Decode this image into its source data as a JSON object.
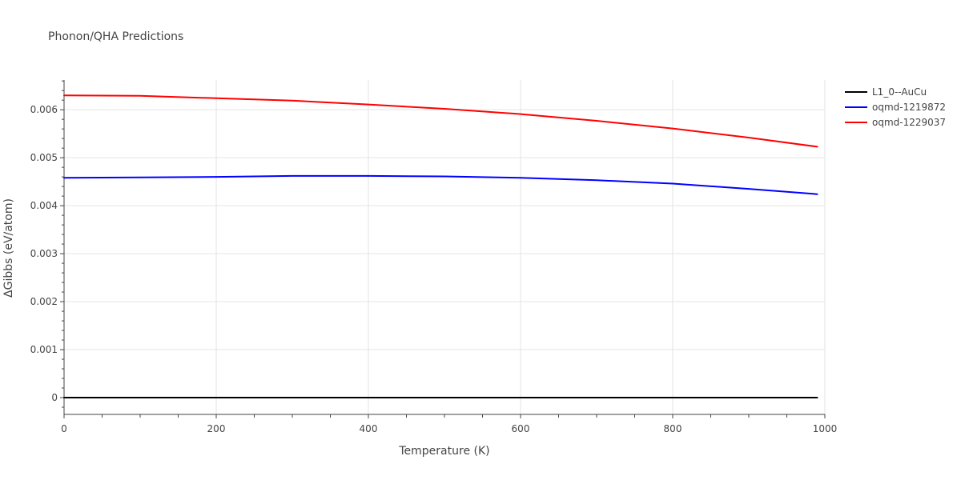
{
  "chart_data": {
    "type": "line",
    "title": "Phonon/QHA Predictions",
    "xlabel": "Temperature (K)",
    "ylabel": "ΔGibbs (eV/atom)",
    "xlim": [
      0,
      1000
    ],
    "ylim": [
      -0.00035,
      0.00662
    ],
    "x_ticks": [
      0,
      200,
      400,
      600,
      800,
      1000
    ],
    "x_tick_labels": [
      "0",
      "200",
      "400",
      "600",
      "800",
      "1000"
    ],
    "y_ticks": [
      0,
      0.001,
      0.002,
      0.003,
      0.004,
      0.005,
      0.006
    ],
    "y_tick_labels": [
      "0",
      "0.001",
      "0.002",
      "0.003",
      "0.004",
      "0.005",
      "0.006"
    ],
    "grid": true,
    "legend_position": "top-right",
    "series": [
      {
        "name": "L1_0--AuCu",
        "color": "#000000",
        "x": [
          0,
          100,
          200,
          300,
          400,
          500,
          600,
          700,
          800,
          900,
          990
        ],
        "y": [
          0,
          0,
          0,
          0,
          0,
          0,
          0,
          0,
          0,
          0,
          0
        ]
      },
      {
        "name": "oqmd-1219872",
        "color": "#0000ff",
        "x": [
          0,
          100,
          200,
          300,
          350,
          400,
          500,
          600,
          700,
          800,
          900,
          990
        ],
        "y": [
          0.00458,
          0.00459,
          0.0046,
          0.00462,
          0.00462,
          0.00462,
          0.00461,
          0.00458,
          0.00453,
          0.00446,
          0.00435,
          0.00424
        ]
      },
      {
        "name": "oqmd-1229037",
        "color": "#ff0000",
        "x": [
          0,
          100,
          200,
          300,
          400,
          500,
          600,
          700,
          800,
          900,
          990
        ],
        "y": [
          0.0063,
          0.00629,
          0.00624,
          0.00619,
          0.00611,
          0.00602,
          0.00591,
          0.00577,
          0.00561,
          0.00542,
          0.00523
        ]
      }
    ]
  }
}
